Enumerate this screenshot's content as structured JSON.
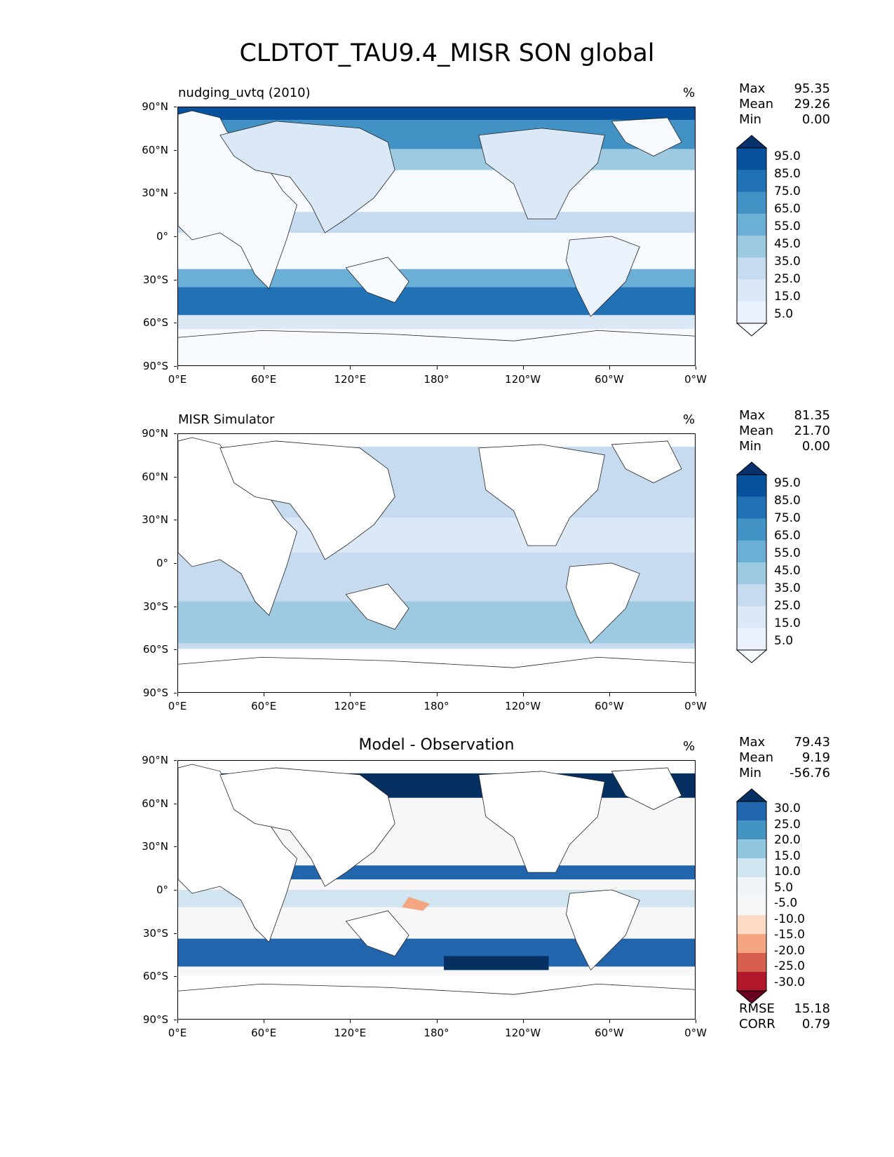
{
  "title": "CLDTOT_TAU9.4_MISR SON global",
  "y_axis_labels": [
    "90°N",
    "60°N",
    "30°N",
    "0°",
    "30°S",
    "60°S",
    "90°S"
  ],
  "x_axis_labels": [
    "0°E",
    "60°E",
    "120°E",
    "180°",
    "120°W",
    "60°W",
    "0°W"
  ],
  "panels": [
    {
      "left_title": "nudging_uvtq (2010)",
      "center_title": "",
      "units": "%",
      "stats": [
        {
          "label": "Max",
          "value": "95.35"
        },
        {
          "label": "Mean",
          "value": "29.26"
        },
        {
          "label": "Min",
          "value": "0.00"
        }
      ],
      "colorbar_labels": [
        "95.0",
        "85.0",
        "75.0",
        "65.0",
        "55.0",
        "45.0",
        "35.0",
        "25.0",
        "15.0",
        "5.0"
      ],
      "colorbar_colors": [
        "#08306b",
        "#08519c",
        "#2171b5",
        "#4292c6",
        "#6baed6",
        "#9ecae1",
        "#c6dbef",
        "#dbe9f6",
        "#eaf2fb",
        "#f7fbff"
      ],
      "footer": []
    },
    {
      "left_title": "MISR Simulator",
      "center_title": "",
      "units": "%",
      "stats": [
        {
          "label": "Max",
          "value": "81.35"
        },
        {
          "label": "Mean",
          "value": "21.70"
        },
        {
          "label": "Min",
          "value": "0.00"
        }
      ],
      "colorbar_labels": [
        "95.0",
        "85.0",
        "75.0",
        "65.0",
        "55.0",
        "45.0",
        "35.0",
        "25.0",
        "15.0",
        "5.0"
      ],
      "colorbar_colors": [
        "#08306b",
        "#08519c",
        "#2171b5",
        "#4292c6",
        "#6baed6",
        "#9ecae1",
        "#c6dbef",
        "#dbe9f6",
        "#eaf2fb",
        "#f7fbff"
      ],
      "footer": []
    },
    {
      "left_title": "",
      "center_title": "Model - Observation",
      "units": "%",
      "stats": [
        {
          "label": "Max",
          "value": "79.43"
        },
        {
          "label": "Mean",
          "value": "9.19"
        },
        {
          "label": "Min",
          "value": "-56.76"
        }
      ],
      "colorbar_labels": [
        "30.0",
        "25.0",
        "20.0",
        "15.0",
        "10.0",
        "5.0",
        "-5.0",
        "-10.0",
        "-15.0",
        "-20.0",
        "-25.0",
        "-30.0"
      ],
      "colorbar_colors": [
        "#053061",
        "#2166ac",
        "#4393c3",
        "#92c5de",
        "#d1e5f0",
        "#eef4f7",
        "#f7f7f7",
        "#fddbc7",
        "#f4a582",
        "#d6604d",
        "#b2182b",
        "#67001f"
      ],
      "footer": [
        {
          "label": "RMSE",
          "value": "15.18"
        },
        {
          "label": "CORR",
          "value": "0.79"
        }
      ]
    }
  ]
}
